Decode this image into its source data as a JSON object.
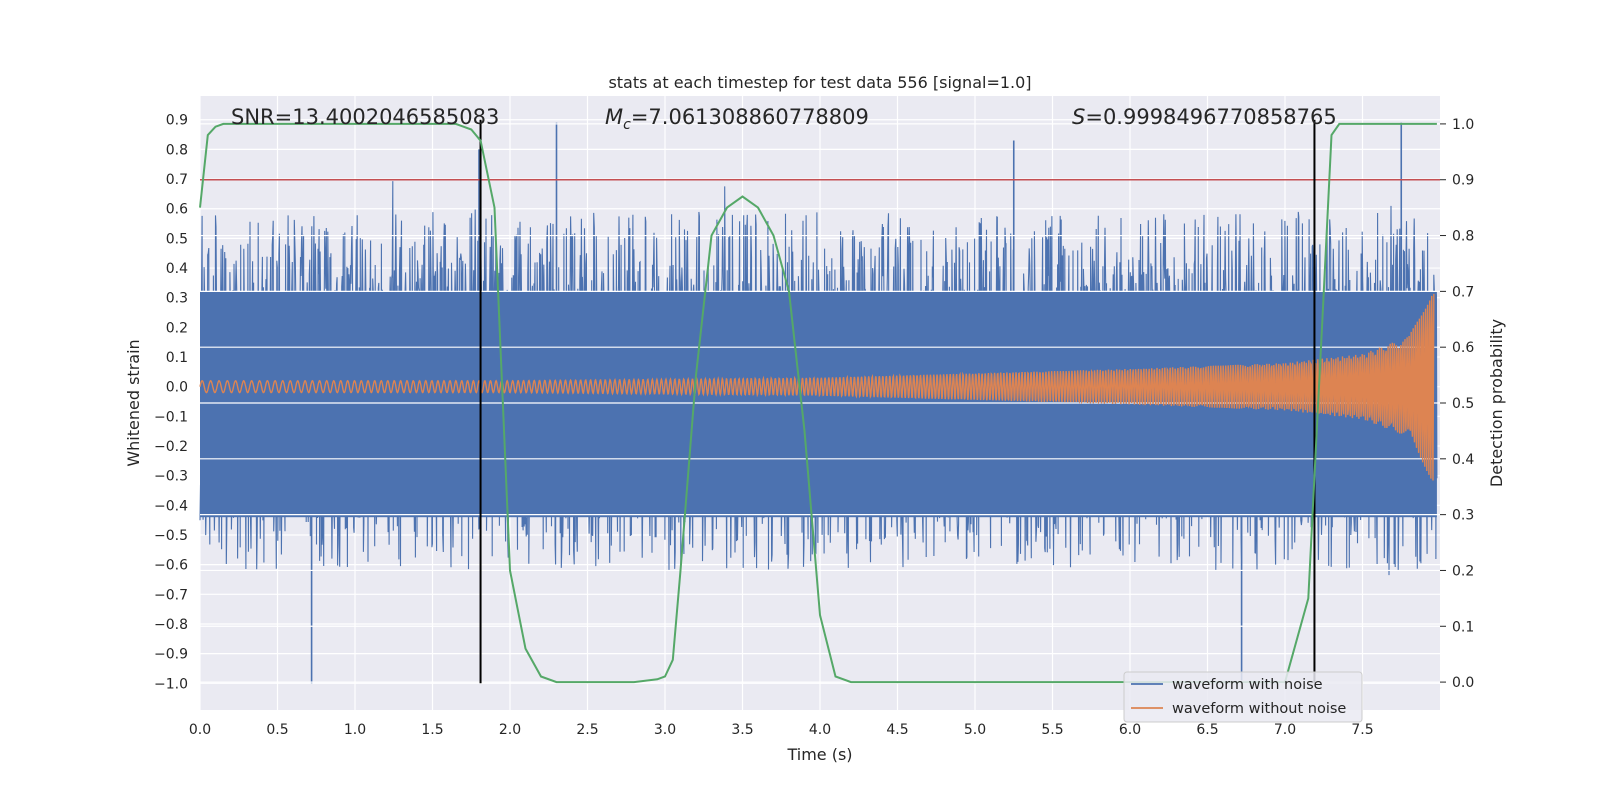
{
  "chart_data": {
    "type": "line",
    "title": "stats at each timestep for test data 556 [signal=1.0]",
    "xlabel": "Time (s)",
    "ylabel": "Whitened strain",
    "ylabel_right": "Detection probability",
    "xlim": [
      0.0,
      8.0
    ],
    "ylim": [
      -1.09,
      0.98
    ],
    "ylim_right": [
      -0.05,
      1.05
    ],
    "xticks": [
      0.0,
      0.5,
      1.0,
      1.5,
      2.0,
      2.5,
      3.0,
      3.5,
      4.0,
      4.5,
      5.0,
      5.5,
      6.0,
      6.5,
      7.0,
      7.5
    ],
    "xtick_labels": [
      "0.0",
      "0.5",
      "1.0",
      "1.5",
      "2.0",
      "2.5",
      "3.0",
      "3.5",
      "4.0",
      "4.5",
      "5.0",
      "5.5",
      "6.0",
      "6.5",
      "7.0",
      "7.5"
    ],
    "yticks": [
      0.9,
      0.8,
      0.7,
      0.6,
      0.5,
      0.4,
      0.3,
      0.2,
      0.1,
      0.0,
      -0.1,
      -0.2,
      -0.3,
      -0.4,
      -0.5,
      -0.6,
      -0.7,
      -0.8,
      -0.9,
      -1.0
    ],
    "ytick_labels": [
      "0.9",
      "0.8",
      "0.7",
      "0.6",
      "0.5",
      "0.4",
      "0.3",
      "0.2",
      "0.1",
      "0.0",
      "−0.1",
      "−0.2",
      "−0.3",
      "−0.4",
      "−0.5",
      "−0.6",
      "−0.7",
      "−0.8",
      "−0.9",
      "−1.0"
    ],
    "yticks_right": [
      1.0,
      0.9,
      0.8,
      0.7,
      0.6,
      0.5,
      0.4,
      0.3,
      0.2,
      0.1,
      0.0
    ],
    "ytick_labels_right": [
      "1.0",
      "0.9",
      "0.8",
      "0.7",
      "0.6",
      "0.5",
      "0.4",
      "0.3",
      "0.2",
      "0.1",
      "0.0"
    ],
    "annotations": {
      "snr": "SNR=13.4002046585083",
      "mc_symbol": "M",
      "mc_sub": "c",
      "mc_value": "=7.061308860778809",
      "s_symbol": "S",
      "s_value": "=0.9998496770858765"
    },
    "threshold": {
      "value": 0.9,
      "axis": "right",
      "color": "#c44e52"
    },
    "vlines": [
      {
        "x": 1.81,
        "ymin": -1.0,
        "ymax": 0.9,
        "color": "#000000"
      },
      {
        "x": 7.19,
        "ymin": -1.0,
        "ymax": 0.9,
        "color": "#000000"
      }
    ],
    "series": [
      {
        "name": "waveform with noise",
        "color": "#4c72b0",
        "axis": "left",
        "description": "whitened noisy strain, band roughly ±0.43 with spikes up to 0.89 and down to −1.0",
        "peaks": [
          {
            "x": 0.72,
            "y": -1.0
          },
          {
            "x": 1.8,
            "y": 0.8
          },
          {
            "x": 2.3,
            "y": 0.89
          },
          {
            "x": 5.25,
            "y": 0.83
          },
          {
            "x": 6.72,
            "y": -0.99
          },
          {
            "x": 7.75,
            "y": 0.89
          }
        ]
      },
      {
        "name": "waveform without noise",
        "color": "#dd8452",
        "axis": "left",
        "description": "chirp signal, amplitude ~0.02 at t=0 growing to ~0.33 near t=8",
        "amplitude": [
          [
            0.0,
            0.02
          ],
          [
            2.0,
            0.02
          ],
          [
            4.0,
            0.03
          ],
          [
            6.0,
            0.06
          ],
          [
            7.0,
            0.08
          ],
          [
            7.5,
            0.11
          ],
          [
            7.8,
            0.17
          ],
          [
            7.95,
            0.33
          ]
        ]
      },
      {
        "name": "detection probability",
        "color": "#55a868",
        "axis": "right",
        "x": [
          0.0,
          0.05,
          0.1,
          0.15,
          0.2,
          1.5,
          1.65,
          1.75,
          1.81,
          1.9,
          2.0,
          2.1,
          2.2,
          2.3,
          2.8,
          2.95,
          3.0,
          3.05,
          3.1,
          3.2,
          3.3,
          3.4,
          3.5,
          3.6,
          3.7,
          3.8,
          3.9,
          4.0,
          4.1,
          4.2,
          7.0,
          7.15,
          7.25,
          7.3,
          7.35,
          7.5,
          8.0
        ],
        "y": [
          0.85,
          0.98,
          0.995,
          1.0,
          1.0,
          1.0,
          1.0,
          0.99,
          0.97,
          0.85,
          0.2,
          0.06,
          0.01,
          0.0,
          0.0,
          0.005,
          0.01,
          0.04,
          0.2,
          0.55,
          0.8,
          0.85,
          0.87,
          0.85,
          0.8,
          0.7,
          0.45,
          0.12,
          0.01,
          0.0,
          0.0,
          0.15,
          0.7,
          0.98,
          1.0,
          1.0,
          1.0
        ]
      }
    ],
    "legend": {
      "position": "lower-right",
      "entries": [
        {
          "label": "waveform with noise",
          "color": "#4c72b0"
        },
        {
          "label": "waveform without noise",
          "color": "#dd8452"
        }
      ]
    }
  }
}
